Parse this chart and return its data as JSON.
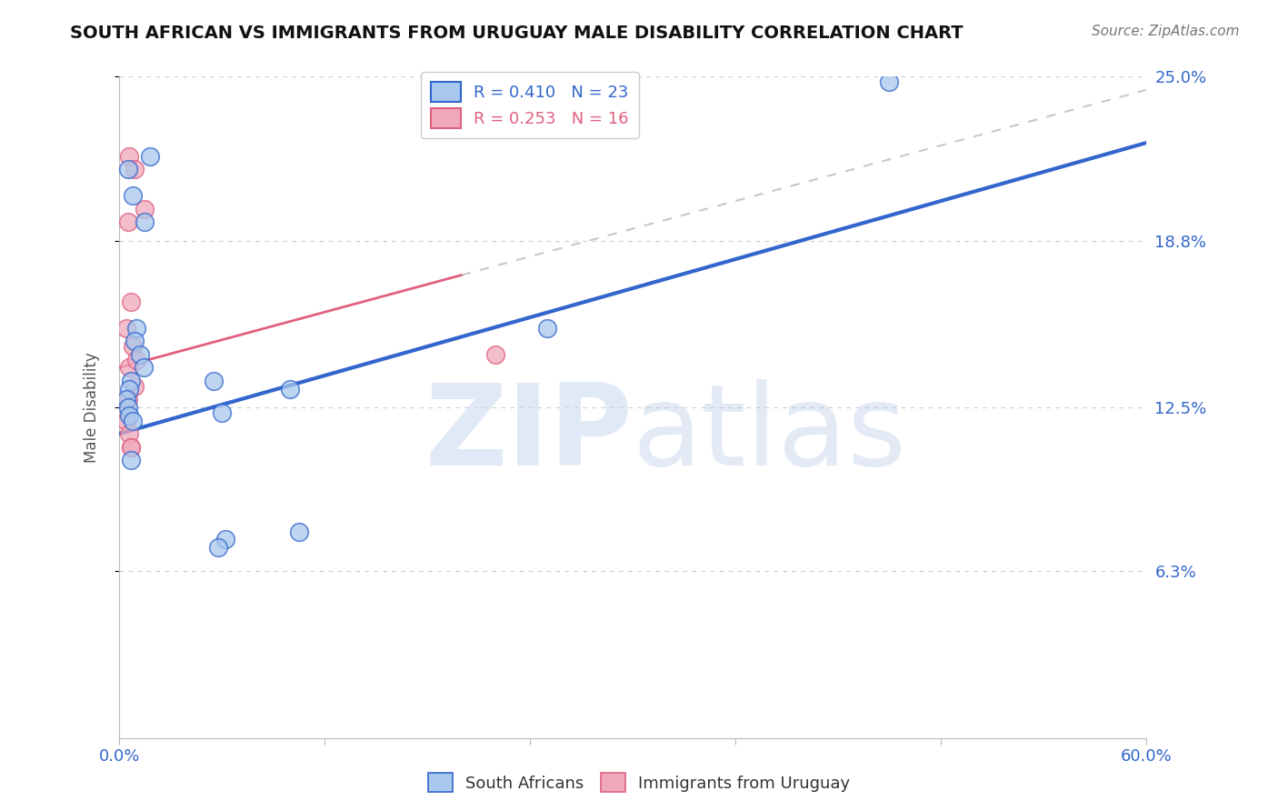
{
  "title": "SOUTH AFRICAN VS IMMIGRANTS FROM URUGUAY MALE DISABILITY CORRELATION CHART",
  "source": "Source: ZipAtlas.com",
  "ylabel": "Male Disability",
  "watermark_zip": "ZIP",
  "watermark_atlas": "atlas",
  "r_sa": 0.41,
  "n_sa": 23,
  "r_uru": 0.253,
  "n_uru": 16,
  "xlim": [
    0.0,
    60.0
  ],
  "ylim": [
    0.0,
    25.0
  ],
  "yticks": [
    6.3,
    12.5,
    18.8,
    25.0
  ],
  "xticks": [
    0.0,
    12.0,
    24.0,
    36.0,
    48.0,
    60.0
  ],
  "xtick_labels": [
    "0.0%",
    "",
    "",
    "",
    "",
    "60.0%"
  ],
  "ytick_labels": [
    "6.3%",
    "12.5%",
    "18.8%",
    "25.0%"
  ],
  "color_sa": "#A8C8EE",
  "color_uru": "#F0A8BC",
  "color_sa_line": "#3366CC",
  "color_uru_line": "#E06080",
  "color_uru_ext": "#C8C8C8",
  "sa_points_x": [
    0.5,
    1.8,
    0.8,
    1.5,
    1.0,
    0.9,
    1.2,
    1.4,
    0.7,
    0.6,
    0.4,
    0.5,
    0.6,
    0.8,
    5.5,
    6.0,
    10.0,
    25.0,
    45.0,
    10.5,
    6.2,
    5.8,
    0.7
  ],
  "sa_points_y": [
    21.5,
    22.0,
    20.5,
    19.5,
    15.5,
    15.0,
    14.5,
    14.0,
    13.5,
    13.2,
    12.8,
    12.5,
    12.2,
    12.0,
    13.5,
    12.3,
    13.2,
    15.5,
    24.8,
    7.8,
    7.5,
    7.2,
    10.5
  ],
  "uru_points_x": [
    0.6,
    0.9,
    1.5,
    0.5,
    0.7,
    0.4,
    0.8,
    0.6,
    0.9,
    0.5,
    0.4,
    0.6,
    0.7,
    22.0,
    1.0,
    0.7
  ],
  "uru_points_y": [
    22.0,
    21.5,
    20.0,
    19.5,
    16.5,
    15.5,
    14.8,
    14.0,
    13.3,
    12.8,
    12.0,
    11.5,
    11.0,
    14.5,
    14.3,
    11.0
  ],
  "background_color": "#FFFFFF",
  "grid_color": "#CCCCCC",
  "sa_line_x0": 0.0,
  "sa_line_y0": 11.5,
  "sa_line_x1": 60.0,
  "sa_line_y1": 22.5,
  "uru_solid_x0": 0.0,
  "uru_solid_y0": 14.0,
  "uru_solid_x1": 20.0,
  "uru_solid_y1": 17.5,
  "uru_dash_x0": 20.0,
  "uru_dash_y0": 17.5,
  "uru_dash_x1": 60.0,
  "uru_dash_y1": 24.5
}
